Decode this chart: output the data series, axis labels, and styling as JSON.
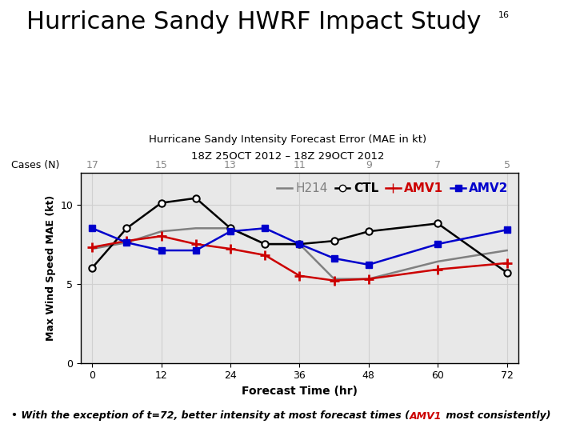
{
  "title_main": "Hurricane Sandy HWRF Impact Study",
  "title_sup": "16",
  "subtitle1": "Hurricane Sandy Intensity Forecast Error (MAE in kt)",
  "subtitle2": "18Z 25OCT 2012 – 18Z 29OCT 2012",
  "xlabel": "Forecast Time (hr)",
  "ylabel": "Max Wind Speed MAE (kt)",
  "cases_label": "Cases (N)",
  "cases_values": [
    "17",
    "15",
    "13",
    "11",
    "9",
    "7",
    "5"
  ],
  "x_ticks": [
    0,
    12,
    24,
    36,
    48,
    60,
    72
  ],
  "ylim": [
    0,
    12
  ],
  "yticks": [
    0,
    5,
    10
  ],
  "CTL_x": [
    0,
    6,
    12,
    18,
    24,
    30,
    36,
    42,
    48,
    60,
    72
  ],
  "CTL_y": [
    6.0,
    8.5,
    10.1,
    10.4,
    8.5,
    7.5,
    7.5,
    7.7,
    8.3,
    8.8,
    5.7
  ],
  "H214_x": [
    0,
    6,
    12,
    18,
    24,
    30,
    36,
    42,
    48,
    60,
    72
  ],
  "H214_y": [
    7.2,
    7.6,
    8.3,
    8.5,
    8.5,
    7.5,
    7.5,
    5.3,
    5.3,
    6.4,
    7.1
  ],
  "AMV1_x": [
    0,
    6,
    12,
    18,
    24,
    30,
    36,
    42,
    48,
    60,
    72
  ],
  "AMV1_y": [
    7.3,
    7.7,
    8.0,
    7.5,
    7.2,
    6.8,
    5.5,
    5.2,
    5.3,
    5.9,
    6.3
  ],
  "AMV2_x": [
    0,
    6,
    12,
    18,
    24,
    30,
    36,
    42,
    48,
    60,
    72
  ],
  "AMV2_y": [
    8.5,
    7.6,
    7.1,
    7.1,
    8.3,
    8.5,
    7.5,
    6.6,
    6.2,
    7.5,
    8.4
  ],
  "CTL_color": "#000000",
  "H214_color": "#808080",
  "AMV1_color": "#cc0000",
  "AMV2_color": "#0000cc",
  "bg_color": "#ffffff",
  "plot_bg": "#e8e8e8",
  "annotation_color": "#000000",
  "AMV1_ann_color": "#cc0000",
  "grid_color": "#d0d0d0"
}
